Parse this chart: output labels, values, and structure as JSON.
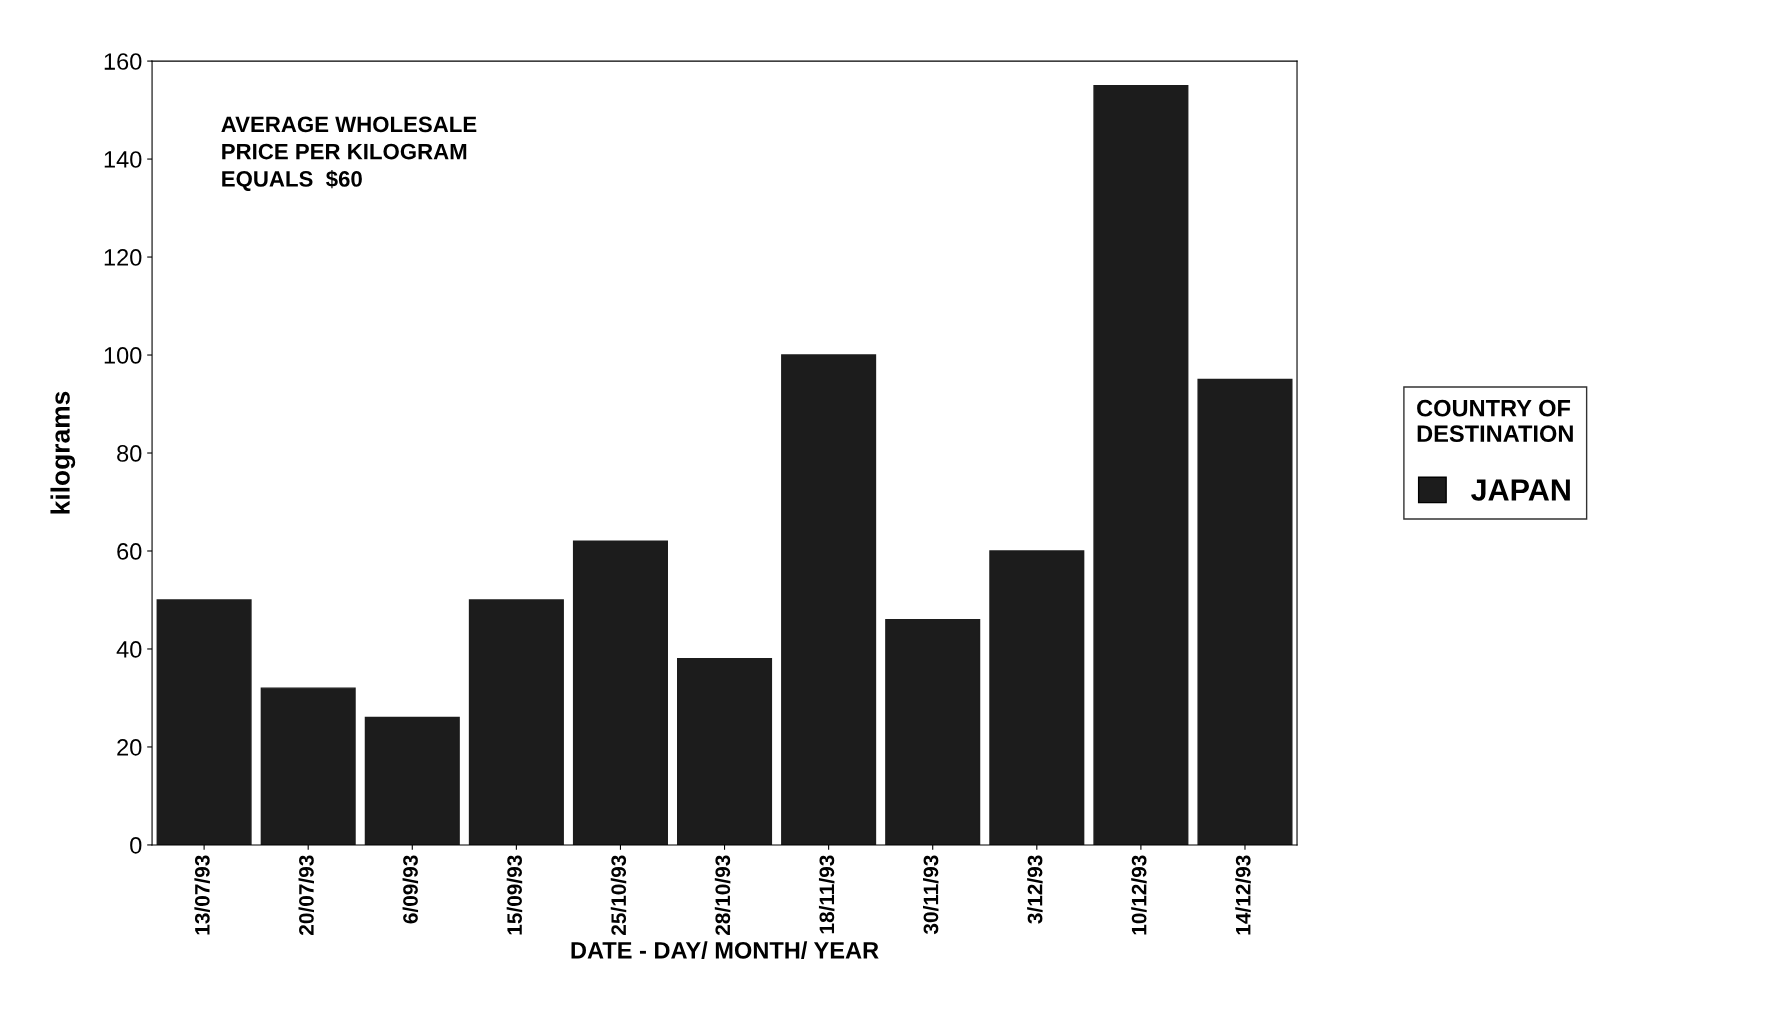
{
  "chart_data": {
    "type": "bar",
    "xlabel": "DATE - DAY/ MONTH/ YEAR",
    "ylabel": "kilograms",
    "legend_title": "COUNTRY OF\nDESTINATION",
    "annotations": [
      "AVERAGE WHOLESALE\nPRICE PER KILOGRAM\nEQUALS  $60"
    ],
    "categories": [
      "13/07/93",
      "20/07/93",
      "6/09/93",
      "15/09/93",
      "25/10/93",
      "28/10/93",
      "18/11/93",
      "30/11/93",
      "3/12/93",
      "10/12/93",
      "14/12/93"
    ],
    "series": [
      {
        "name": "JAPAN",
        "color": "#1c1c1c",
        "values": [
          50,
          32,
          26,
          50,
          62,
          38,
          100,
          46,
          60,
          155,
          95
        ]
      }
    ],
    "ylim": [
      0,
      160
    ],
    "yticks": [
      0,
      20,
      40,
      60,
      80,
      100,
      120,
      140,
      160
    ],
    "grid": false,
    "legend": "right"
  }
}
